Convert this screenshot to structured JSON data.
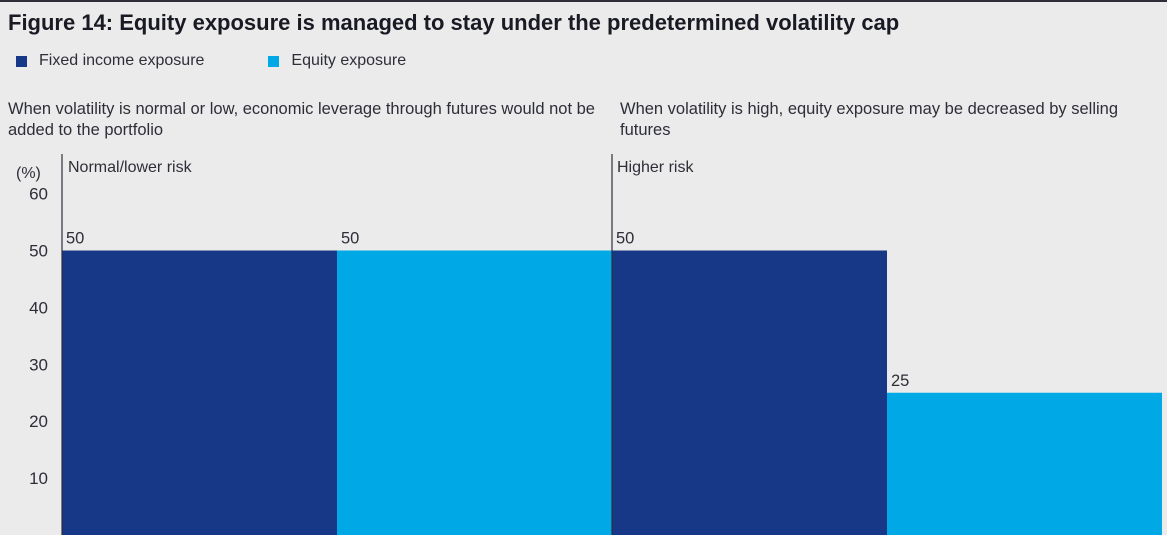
{
  "title": "Figure 14: Equity exposure is managed to stay under the predetermined volatility cap",
  "legend": [
    {
      "label": "Fixed income exposure",
      "color": "#163886"
    },
    {
      "label": "Equity exposure",
      "color": "#00a9e6"
    }
  ],
  "panels": [
    {
      "description": "When volatility is normal or low, economic leverage through futures would not be added to the portfolio",
      "label": "Normal/lower risk"
    },
    {
      "description": "When volatility is high, equity exposure may be decreased by selling futures",
      "label": "Higher risk"
    }
  ],
  "chart_data": {
    "type": "bar",
    "title": "Figure 14: Equity exposure is managed to stay under the predetermined volatility cap",
    "ylabel": "(%)",
    "ylim": [
      0,
      60
    ],
    "yticks": [
      10,
      20,
      30,
      40,
      50,
      60
    ],
    "grid": false,
    "legend_position": "top-left",
    "categories": [
      "Normal/lower risk",
      "Higher risk"
    ],
    "series": [
      {
        "name": "Fixed income exposure",
        "color": "#163886",
        "values": [
          50,
          50
        ]
      },
      {
        "name": "Equity exposure",
        "color": "#00a9e6",
        "values": [
          50,
          25
        ]
      }
    ],
    "data_labels": [
      "50",
      "50",
      "50",
      "25"
    ]
  }
}
